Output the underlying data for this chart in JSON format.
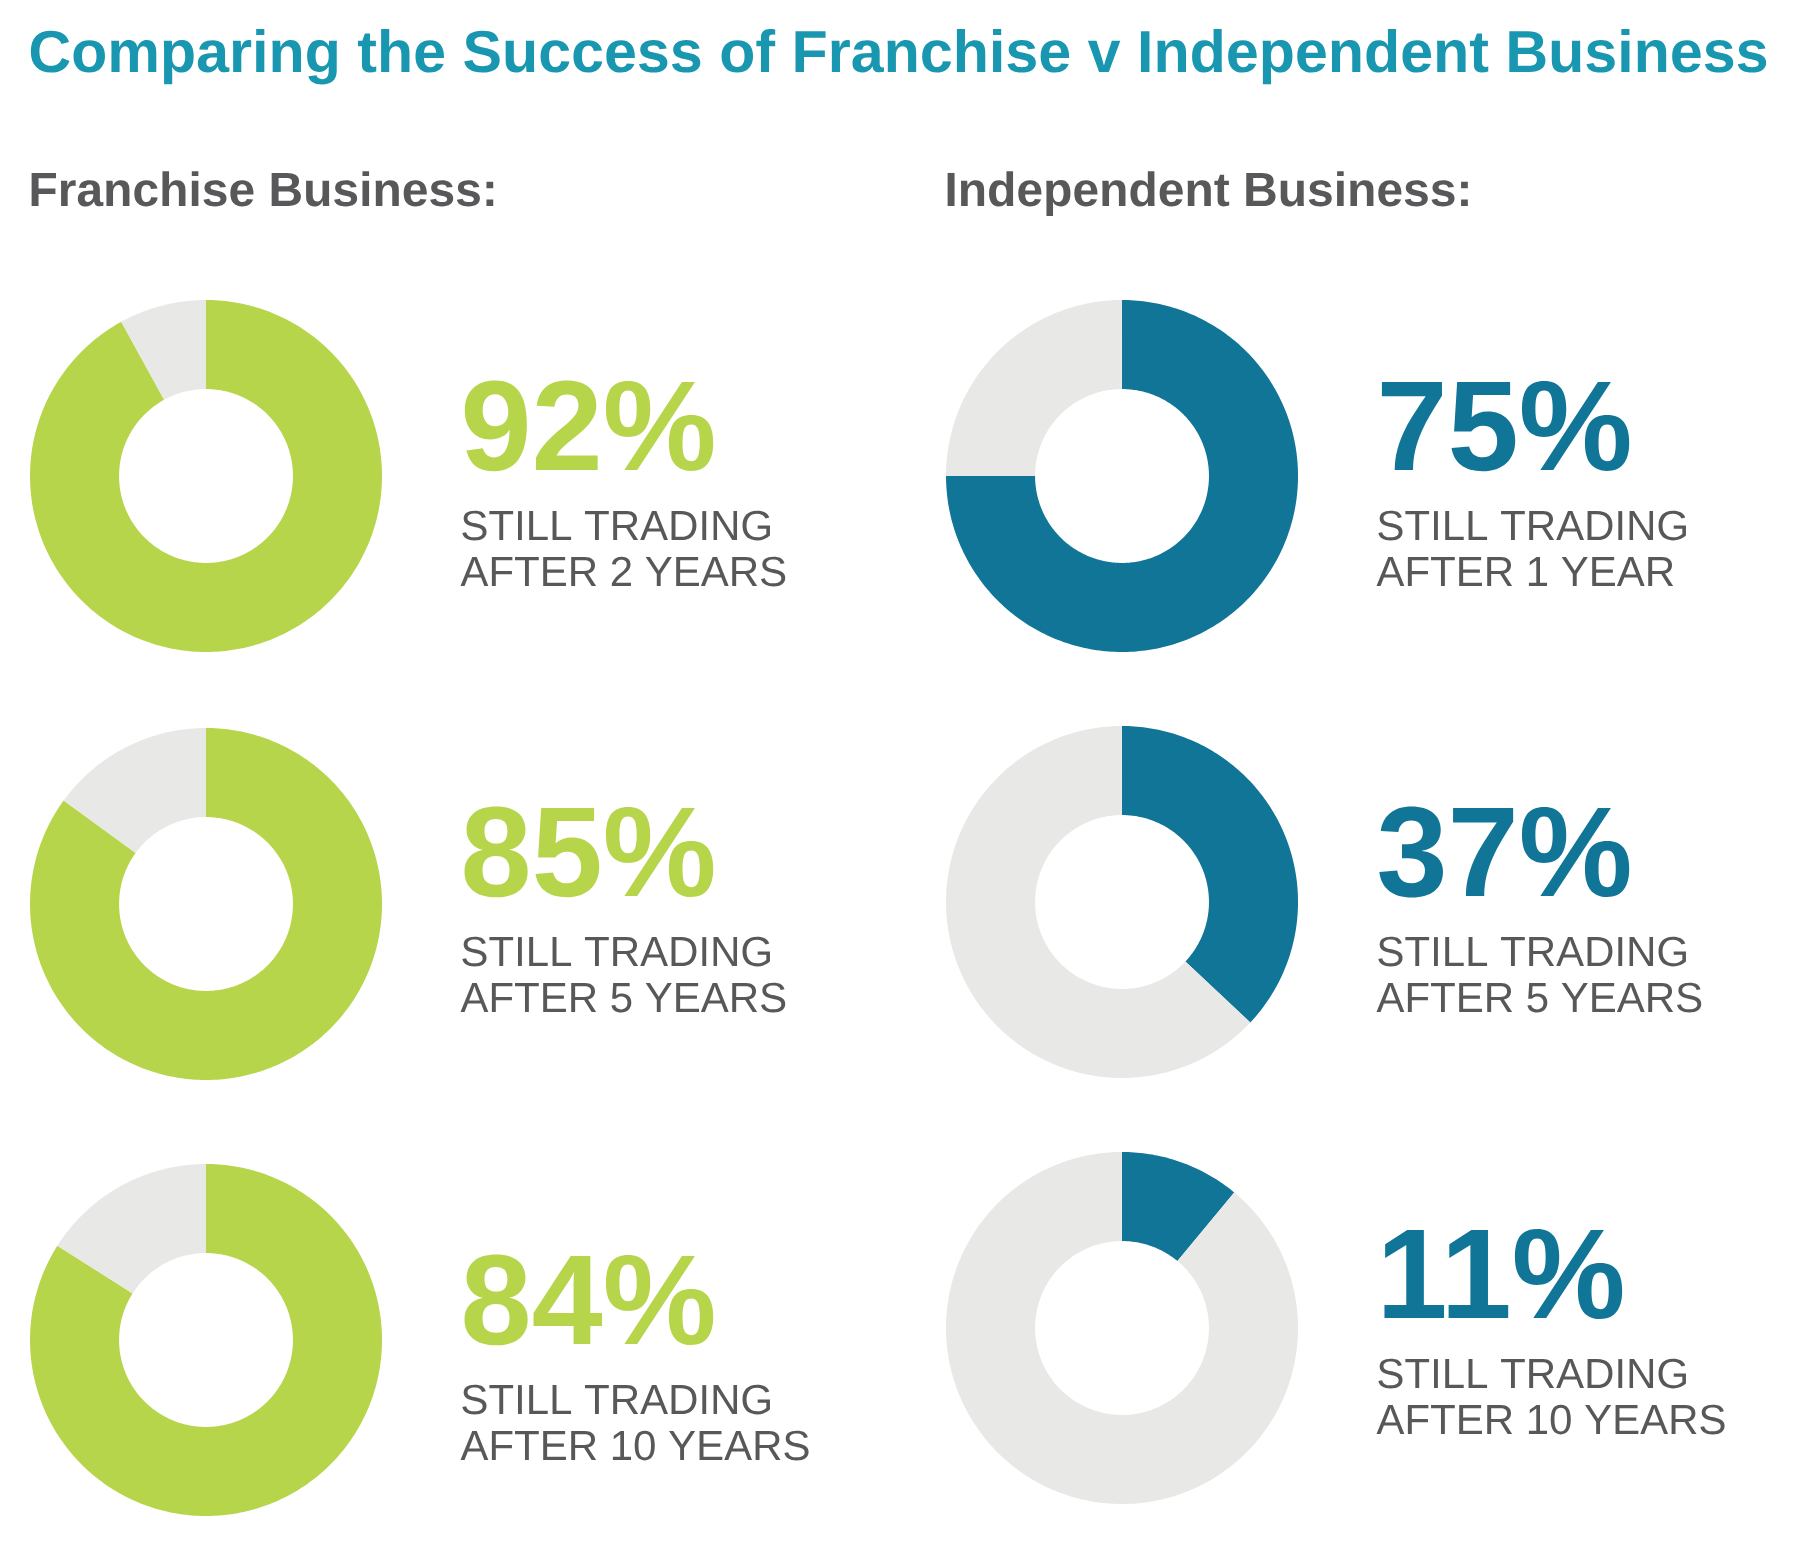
{
  "chart_data": [
    {
      "type": "donut",
      "title": "Comparing the Success of Franchise v Independent Business",
      "subtitle": "Franchise Business:",
      "categories": [
        null,
        null
      ],
      "values": [
        92,
        8
      ],
      "colors": [
        "#b7d54a",
        "#e8e8e6"
      ],
      "annotations": [
        "92%",
        "STILL TRADING AFTER 2 YEARS"
      ]
    },
    {
      "type": "donut",
      "categories": [
        null,
        null
      ],
      "values": [
        85,
        15
      ],
      "colors": [
        "#b7d54a",
        "#e8e8e6"
      ],
      "annotations": [
        "85%",
        "STILL TRADING AFTER 5 YEARS"
      ]
    },
    {
      "type": "donut",
      "categories": [
        null,
        null
      ],
      "values": [
        84,
        16
      ],
      "colors": [
        "#b7d54a",
        "#e8e8e6"
      ],
      "annotations": [
        "84%",
        "STILL TRADING AFTER 10 YEARS"
      ]
    },
    {
      "type": "donut",
      "subtitle": "Independent Business:",
      "categories": [
        null,
        null
      ],
      "values": [
        75,
        25
      ],
      "colors": [
        "#107596",
        "#e8e8e6"
      ],
      "annotations": [
        "75%",
        "STILL TRADING AFTER 1 YEAR"
      ]
    },
    {
      "type": "donut",
      "categories": [
        null,
        null
      ],
      "values": [
        37,
        63
      ],
      "colors": [
        "#107596",
        "#e8e8e6"
      ],
      "annotations": [
        "37%",
        "STILL TRADING AFTER 5 YEARS"
      ]
    },
    {
      "type": "donut",
      "categories": [
        null,
        null
      ],
      "values": [
        11,
        89
      ],
      "colors": [
        "#107596",
        "#e8e8e6"
      ],
      "annotations": [
        "11%",
        "STILL TRADING AFTER 10 YEARS"
      ]
    }
  ]
}
